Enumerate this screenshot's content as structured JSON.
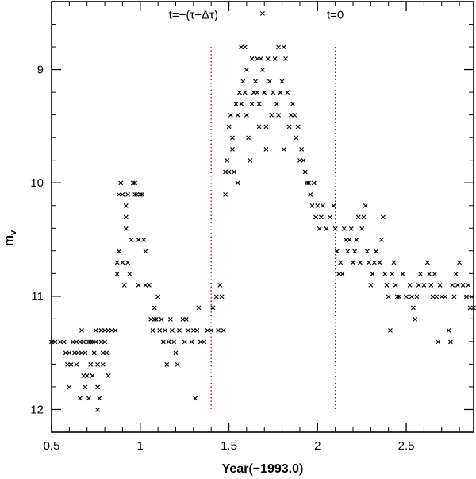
{
  "chart_data": {
    "type": "scatter",
    "title": "",
    "xlabel": "Year(−1993.0)",
    "ylabel_main": "m",
    "ylabel_sub": "v",
    "xlim": [
      0.5,
      2.88
    ],
    "ylim": [
      12.2,
      8.4
    ],
    "y_inverted": true,
    "grid": false,
    "x_ticks": [
      {
        "value": 0.5,
        "label": "0.5"
      },
      {
        "value": 1.0,
        "label": "1"
      },
      {
        "value": 1.5,
        "label": "1.5"
      },
      {
        "value": 2.0,
        "label": "2"
      },
      {
        "value": 2.5,
        "label": "2.5"
      }
    ],
    "y_ticks": [
      {
        "value": 9,
        "label": "9"
      },
      {
        "value": 10,
        "label": "10"
      },
      {
        "value": 11,
        "label": "11"
      },
      {
        "value": 12,
        "label": "12"
      }
    ],
    "marker": "×",
    "vlines": [
      {
        "x": 1.4,
        "y_from": 8.8,
        "y_to": 12.0,
        "color": "#dd0000",
        "style": "dotted"
      },
      {
        "x": 2.1,
        "y_from": 8.8,
        "y_to": 12.0,
        "color": "#dd0000",
        "style": "dotted"
      }
    ],
    "annotations": [
      {
        "text": "t=−(τ−Δτ)",
        "x": 1.3,
        "y": 8.55
      },
      {
        "text": "t=0",
        "x": 2.1,
        "y": 8.55
      }
    ],
    "series": [
      {
        "points": [
          [
            0.5,
            11.4
          ],
          [
            0.52,
            11.4
          ],
          [
            0.55,
            11.4
          ],
          [
            0.57,
            11.4
          ],
          [
            0.58,
            11.5
          ],
          [
            0.59,
            11.6
          ],
          [
            0.6,
            11.5
          ],
          [
            0.61,
            11.6
          ],
          [
            0.6,
            11.8
          ],
          [
            0.62,
            11.4
          ],
          [
            0.63,
            11.5
          ],
          [
            0.64,
            11.4
          ],
          [
            0.65,
            11.5
          ],
          [
            0.64,
            11.6
          ],
          [
            0.66,
            11.4
          ],
          [
            0.67,
            11.3
          ],
          [
            0.67,
            11.5
          ],
          [
            0.66,
            11.9
          ],
          [
            0.68,
            11.4
          ],
          [
            0.69,
            11.5
          ],
          [
            0.68,
            11.7
          ],
          [
            0.7,
            11.7
          ],
          [
            0.69,
            11.8
          ],
          [
            0.71,
            11.4
          ],
          [
            0.72,
            11.6
          ],
          [
            0.72,
            11.4
          ],
          [
            0.71,
            11.9
          ],
          [
            0.73,
            11.4
          ],
          [
            0.74,
            11.5
          ],
          [
            0.73,
            11.7
          ],
          [
            0.75,
            11.3
          ],
          [
            0.75,
            11.4
          ],
          [
            0.76,
            11.6
          ],
          [
            0.76,
            11.8
          ],
          [
            0.77,
            11.9
          ],
          [
            0.76,
            12.0
          ],
          [
            0.78,
            11.3
          ],
          [
            0.78,
            11.4
          ],
          [
            0.79,
            11.5
          ],
          [
            0.79,
            11.6
          ],
          [
            0.8,
            11.4
          ],
          [
            0.8,
            11.3
          ],
          [
            0.81,
            11.5
          ],
          [
            0.82,
            11.7
          ],
          [
            0.82,
            11.3
          ],
          [
            0.84,
            11.3
          ],
          [
            0.86,
            11.3
          ],
          [
            0.87,
            10.7
          ],
          [
            0.87,
            10.8
          ],
          [
            0.88,
            10.6
          ],
          [
            0.88,
            10.1
          ],
          [
            0.89,
            10.0
          ],
          [
            0.9,
            10.1
          ],
          [
            0.9,
            10.7
          ],
          [
            0.91,
            10.9
          ],
          [
            0.92,
            10.2
          ],
          [
            0.92,
            10.3
          ],
          [
            0.92,
            10.4
          ],
          [
            0.93,
            10.1
          ],
          [
            0.93,
            10.7
          ],
          [
            0.94,
            10.8
          ],
          [
            0.95,
            10.5
          ],
          [
            0.96,
            10.0
          ],
          [
            0.97,
            10.0
          ],
          [
            0.97,
            10.1
          ],
          [
            0.98,
            10.1
          ],
          [
            0.99,
            10.5
          ],
          [
            1.0,
            10.1
          ],
          [
            1.01,
            10.1
          ],
          [
            0.99,
            10.9
          ],
          [
            1.02,
            10.5
          ],
          [
            1.03,
            10.6
          ],
          [
            1.03,
            10.9
          ],
          [
            1.05,
            10.9
          ],
          [
            1.06,
            11.2
          ],
          [
            1.07,
            11.3
          ],
          [
            1.08,
            11.2
          ],
          [
            1.08,
            11.1
          ],
          [
            1.09,
            11.2
          ],
          [
            1.1,
            11.0
          ],
          [
            1.11,
            11.3
          ],
          [
            1.12,
            11.2
          ],
          [
            1.13,
            11.4
          ],
          [
            1.14,
            11.3
          ],
          [
            1.15,
            11.6
          ],
          [
            1.16,
            11.4
          ],
          [
            1.17,
            11.2
          ],
          [
            1.18,
            11.3
          ],
          [
            1.19,
            11.4
          ],
          [
            1.2,
            11.5
          ],
          [
            1.21,
            11.6
          ],
          [
            1.22,
            11.3
          ],
          [
            1.24,
            11.2
          ],
          [
            1.25,
            11.4
          ],
          [
            1.26,
            11.2
          ],
          [
            1.27,
            11.3
          ],
          [
            1.29,
            11.4
          ],
          [
            1.3,
            11.3
          ],
          [
            1.31,
            11.9
          ],
          [
            1.32,
            11.3
          ],
          [
            1.33,
            11.1
          ],
          [
            1.34,
            11.4
          ],
          [
            1.36,
            11.4
          ],
          [
            1.38,
            11.3
          ],
          [
            1.4,
            11.3
          ],
          [
            1.41,
            11.1
          ],
          [
            1.43,
            11.0
          ],
          [
            1.44,
            11.3
          ],
          [
            1.45,
            10.9
          ],
          [
            1.46,
            11.0
          ],
          [
            1.47,
            11.3
          ],
          [
            1.48,
            10.1
          ],
          [
            1.48,
            9.9
          ],
          [
            1.49,
            9.8
          ],
          [
            1.5,
            9.5
          ],
          [
            1.5,
            9.9
          ],
          [
            1.51,
            9.4
          ],
          [
            1.52,
            9.6
          ],
          [
            1.52,
            9.7
          ],
          [
            1.53,
            9.9
          ],
          [
            1.54,
            9.3
          ],
          [
            1.55,
            9.4
          ],
          [
            1.55,
            10.0
          ],
          [
            1.56,
            9.2
          ],
          [
            1.57,
            8.8
          ],
          [
            1.57,
            9.3
          ],
          [
            1.58,
            9.1
          ],
          [
            1.59,
            9.2
          ],
          [
            1.6,
            9.0
          ],
          [
            1.6,
            9.4
          ],
          [
            1.61,
            9.6
          ],
          [
            1.62,
            9.8
          ],
          [
            1.63,
            8.9
          ],
          [
            1.63,
            9.3
          ],
          [
            1.64,
            9.2
          ],
          [
            1.65,
            9.1
          ],
          [
            1.66,
            9.2
          ],
          [
            1.67,
            9.3
          ],
          [
            1.67,
            9.5
          ],
          [
            1.68,
            8.9
          ],
          [
            1.69,
            9.0
          ],
          [
            1.7,
            9.2
          ],
          [
            1.71,
            9.7
          ],
          [
            1.71,
            9.5
          ],
          [
            1.72,
            8.9
          ],
          [
            1.73,
            9.1
          ],
          [
            1.74,
            9.4
          ],
          [
            1.75,
            9.2
          ],
          [
            1.76,
            8.9
          ],
          [
            1.77,
            9.3
          ],
          [
            1.78,
            9.4
          ],
          [
            1.79,
            9.2
          ],
          [
            1.8,
            9.1
          ],
          [
            1.81,
            9.7
          ],
          [
            1.82,
            8.9
          ],
          [
            1.83,
            9.2
          ],
          [
            1.84,
            9.5
          ],
          [
            1.85,
            9.4
          ],
          [
            1.86,
            9.3
          ],
          [
            1.87,
            9.4
          ],
          [
            1.88,
            9.6
          ],
          [
            1.89,
            9.5
          ],
          [
            1.9,
            9.8
          ],
          [
            1.91,
            9.7
          ],
          [
            1.92,
            9.8
          ],
          [
            1.93,
            9.9
          ],
          [
            1.94,
            10.0
          ],
          [
            1.95,
            10.0
          ],
          [
            1.96,
            10.1
          ],
          [
            1.97,
            10.2
          ],
          [
            1.98,
            10.0
          ],
          [
            1.99,
            10.3
          ],
          [
            2.0,
            10.2
          ],
          [
            2.01,
            10.4
          ],
          [
            2.02,
            10.3
          ],
          [
            2.03,
            10.2
          ],
          [
            2.05,
            10.4
          ],
          [
            2.07,
            10.3
          ],
          [
            2.09,
            10.2
          ],
          [
            2.1,
            10.4
          ],
          [
            2.11,
            10.6
          ],
          [
            2.12,
            10.8
          ],
          [
            2.13,
            10.7
          ],
          [
            2.14,
            10.8
          ],
          [
            2.15,
            10.4
          ],
          [
            2.16,
            10.5
          ],
          [
            2.17,
            10.6
          ],
          [
            2.18,
            10.5
          ],
          [
            2.19,
            10.4
          ],
          [
            2.2,
            10.7
          ],
          [
            2.21,
            10.6
          ],
          [
            2.22,
            10.5
          ],
          [
            2.23,
            10.3
          ],
          [
            2.24,
            10.7
          ],
          [
            2.25,
            10.4
          ],
          [
            2.26,
            10.3
          ],
          [
            2.27,
            10.2
          ],
          [
            2.28,
            10.6
          ],
          [
            2.29,
            10.7
          ],
          [
            2.3,
            10.9
          ],
          [
            2.31,
            10.8
          ],
          [
            2.32,
            10.7
          ],
          [
            2.33,
            10.6
          ],
          [
            2.35,
            10.7
          ],
          [
            2.36,
            10.5
          ],
          [
            2.37,
            10.3
          ],
          [
            2.38,
            10.8
          ],
          [
            2.39,
            10.9
          ],
          [
            2.4,
            11.0
          ],
          [
            2.41,
            11.3
          ],
          [
            2.42,
            10.8
          ],
          [
            2.43,
            10.7
          ],
          [
            2.44,
            10.9
          ],
          [
            2.45,
            11.0
          ],
          [
            2.46,
            11.0
          ],
          [
            2.48,
            10.8
          ],
          [
            2.5,
            11.0
          ],
          [
            2.52,
            10.9
          ],
          [
            2.53,
            11.0
          ],
          [
            2.54,
            11.1
          ],
          [
            2.55,
            11.2
          ],
          [
            2.56,
            11.0
          ],
          [
            2.57,
            10.9
          ],
          [
            2.58,
            10.8
          ],
          [
            2.6,
            10.9
          ],
          [
            2.62,
            10.7
          ],
          [
            2.63,
            10.8
          ],
          [
            2.64,
            10.9
          ],
          [
            2.65,
            11.0
          ],
          [
            2.66,
            10.8
          ],
          [
            2.67,
            11.0
          ],
          [
            2.68,
            11.4
          ],
          [
            2.69,
            10.9
          ],
          [
            2.7,
            11.0
          ],
          [
            2.72,
            11.0
          ],
          [
            2.74,
            11.3
          ],
          [
            2.75,
            11.4
          ],
          [
            2.76,
            10.9
          ],
          [
            2.77,
            11.0
          ],
          [
            2.78,
            10.8
          ],
          [
            2.79,
            10.9
          ],
          [
            2.8,
            10.7
          ],
          [
            2.82,
            10.9
          ],
          [
            2.84,
            11.0
          ],
          [
            2.85,
            10.9
          ],
          [
            2.86,
            11.1
          ],
          [
            2.87,
            11.0
          ],
          [
            2.88,
            11.1
          ],
          [
            1.69,
            8.5
          ],
          [
            1.59,
            8.8
          ],
          [
            1.66,
            8.9
          ],
          [
            1.78,
            8.8
          ],
          [
            1.81,
            8.8
          ]
        ]
      }
    ]
  }
}
